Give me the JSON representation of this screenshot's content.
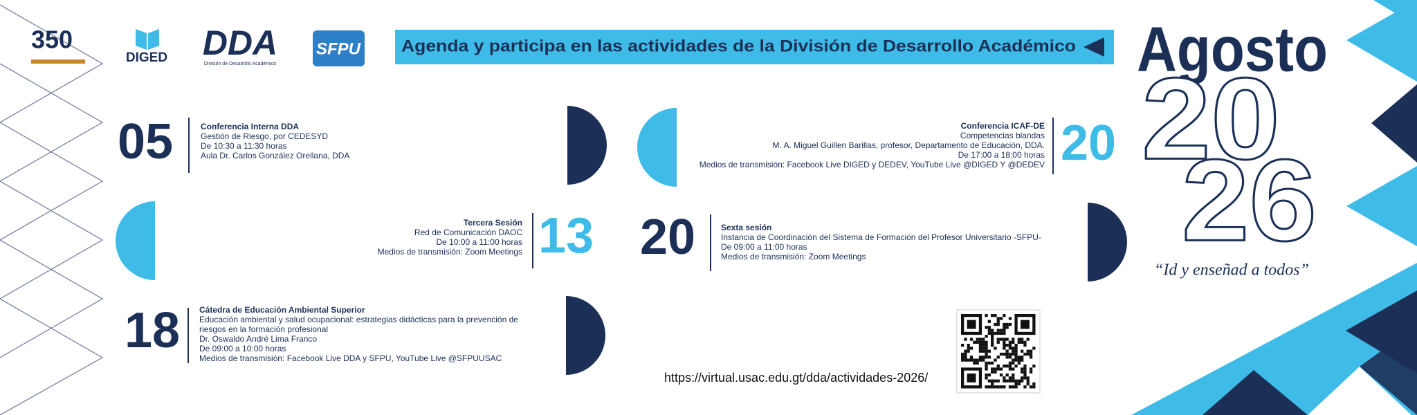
{
  "header": {
    "logos": [
      "350",
      "DIGED",
      "DDA",
      "División de Desarrollo Académico",
      "SFPU"
    ],
    "banner": "Agenda y participa en las actividades de la División de Desarrollo Académico"
  },
  "month": "Agosto",
  "year": [
    "20",
    "26"
  ],
  "motto": "“Id y enseñad a todos”",
  "events": [
    {
      "day": "05",
      "lines": [
        "Conferencia Interna DDA",
        "Gestión de Riesgo, por CEDESYD",
        "De 10:30  a 11:30 horas",
        "Aula Dr. Carlos González Orellana, DDA"
      ]
    },
    {
      "day": "20",
      "lines": [
        "Conferencia ICAF-DE",
        "Competencias blandas",
        "M. A. Miguel Guillen Barillas, profesor, Departamento de Educación, DDA.",
        "De 17:00 a 18:00 horas",
        "Medios de transmisión: Facebook Live DIGED y DEDEV, YouTube Live @DIGED Y @DEDEV"
      ]
    },
    {
      "day": "13",
      "lines": [
        "Tercera Sesión",
        "Red de Comunicación DAOC",
        "De 10:00  a 11:00 horas",
        "Medios de transmisión: Zoom Meetings"
      ]
    },
    {
      "day": "20",
      "lines": [
        "Sexta sesión",
        "Instancia de Coordinación del Sistema de Formación del Profesor Universitario -SFPU-",
        "De 09:00 a 11:00 horas",
        "Medios de transmisión: Zoom Meetings"
      ]
    },
    {
      "day": "18",
      "lines": [
        "Cátedra de Educación Ambiental Superior",
        "Educación ambiental y salud ocupacional: estrategias didácticas para la prevención de",
        "riesgos en la formación profesional",
        "Dr. Oswaldo André Lima Franco",
        "De 09:00 a 10:00 horas",
        "Medios de transmisión: Facebook Live DDA y SFPU, YouTube Live @SFPUUSAC"
      ]
    }
  ],
  "url": "https://virtual.usac.edu.gt/dda/actividades-2026/"
}
